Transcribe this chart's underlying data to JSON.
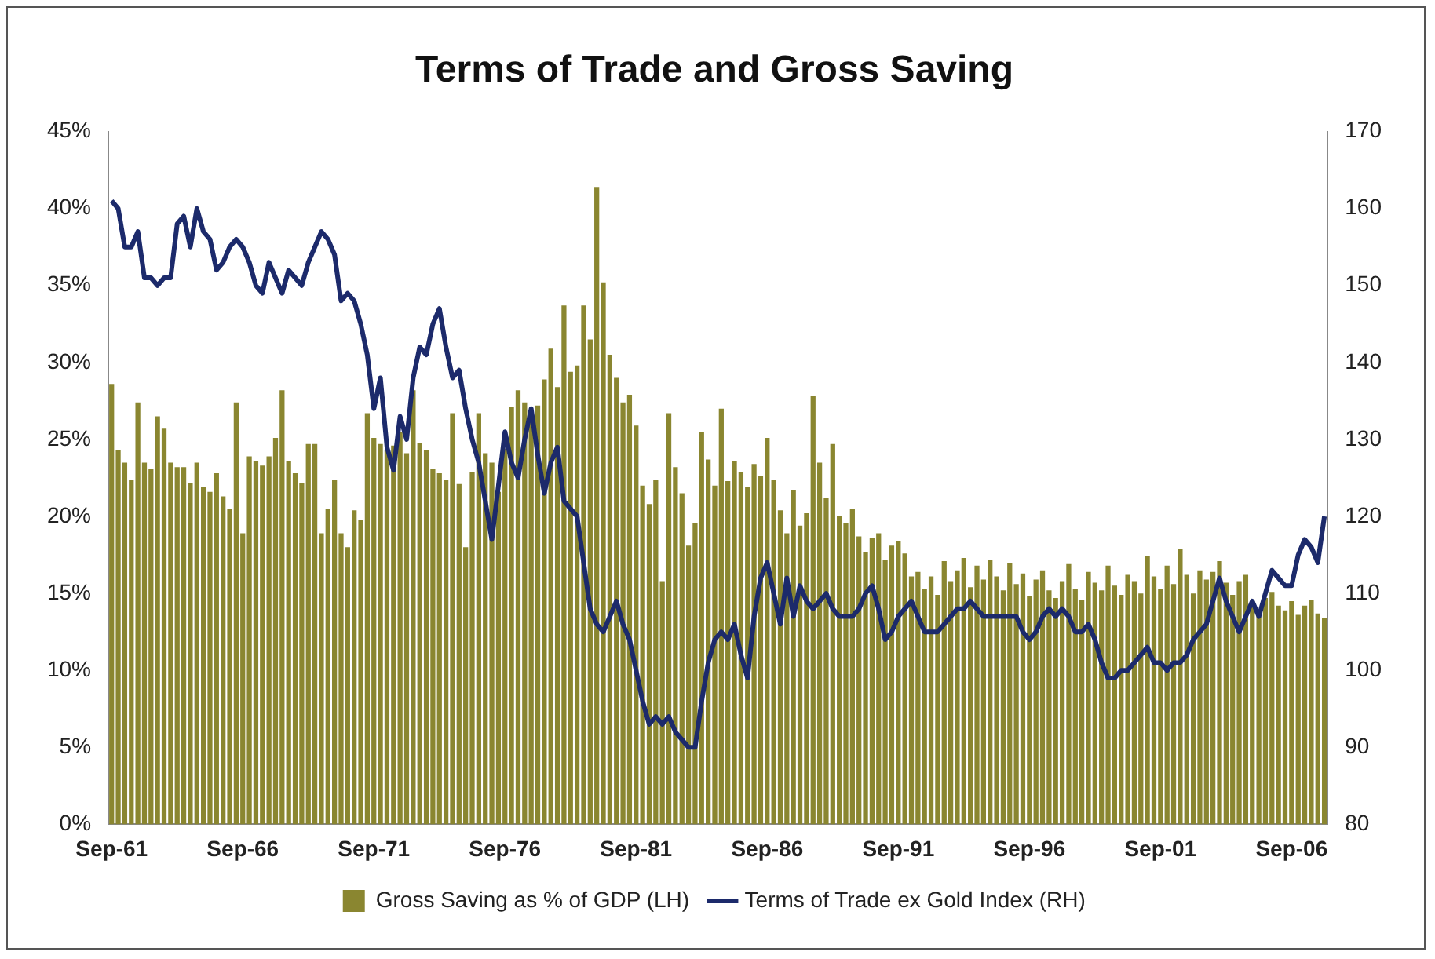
{
  "chart_data": {
    "type": "bar",
    "title": "Terms of Trade and Gross Saving",
    "categories": [
      "Sep-61",
      null,
      null,
      null,
      null,
      null,
      null,
      null,
      null,
      null,
      null,
      null,
      null,
      null,
      null,
      null,
      null,
      null,
      null,
      null,
      "Sep-66",
      null,
      null,
      null,
      null,
      null,
      null,
      null,
      null,
      null,
      null,
      null,
      null,
      null,
      null,
      null,
      null,
      null,
      null,
      null,
      "Sep-71",
      null,
      null,
      null,
      null,
      null,
      null,
      null,
      null,
      null,
      null,
      null,
      null,
      null,
      null,
      null,
      null,
      null,
      null,
      null,
      "Sep-76",
      null,
      null,
      null,
      null,
      null,
      null,
      null,
      null,
      null,
      null,
      null,
      null,
      null,
      null,
      null,
      null,
      null,
      null,
      null,
      "Sep-81",
      null,
      null,
      null,
      null,
      null,
      null,
      null,
      null,
      null,
      null,
      null,
      null,
      null,
      null,
      null,
      null,
      null,
      null,
      null,
      "Sep-86",
      null,
      null,
      null,
      null,
      null,
      null,
      null,
      null,
      null,
      null,
      null,
      null,
      null,
      null,
      null,
      null,
      null,
      null,
      null,
      "Sep-91",
      null,
      null,
      null,
      null,
      null,
      null,
      null,
      null,
      null,
      null,
      null,
      null,
      null,
      null,
      null,
      null,
      null,
      null,
      null,
      "Sep-96",
      null,
      null,
      null,
      null,
      null,
      null,
      null,
      null,
      null,
      null,
      null,
      null,
      null,
      null,
      null,
      null,
      null,
      null,
      null,
      "Sep-01",
      null,
      null,
      null,
      null,
      null,
      null,
      null,
      null,
      null,
      null,
      null,
      null,
      null,
      null,
      null,
      null,
      null,
      null,
      null,
      "Sep-06",
      null,
      null,
      null,
      null,
      null
    ],
    "series": [
      {
        "name": "Gross Saving as % of GDP (LH)",
        "color": "#8a8630",
        "values": [
          28.6,
          24.3,
          23.5,
          22.4,
          27.4,
          23.5,
          23.1,
          26.5,
          25.7,
          23.5,
          23.2,
          23.2,
          22.2,
          23.5,
          21.9,
          21.6,
          22.8,
          21.3,
          20.5,
          27.4,
          18.9,
          23.9,
          23.6,
          23.3,
          23.9,
          25.1,
          28.2,
          23.6,
          22.8,
          22.2,
          24.7,
          24.7,
          18.9,
          20.5,
          22.4,
          18.9,
          18,
          20.4,
          19.8,
          26.7,
          25.1,
          24.7,
          24.3,
          24.6,
          25.5,
          24.1,
          28.2,
          24.8,
          24.3,
          23.1,
          22.8,
          22.4,
          26.7,
          22.1,
          18,
          22.9,
          26.7,
          24.1,
          23.5,
          21.6,
          24.4,
          27.1,
          28.2,
          27.4,
          26.3,
          27.2,
          28.9,
          30.9,
          28.4,
          33.7,
          29.4,
          29.8,
          33.7,
          31.5,
          41.4,
          35.2,
          30.5,
          29,
          27.4,
          27.9,
          25.9,
          22,
          20.8,
          22.4,
          15.8,
          26.7,
          23.2,
          21.5,
          18.1,
          19.6,
          25.5,
          23.7,
          22,
          27,
          22.3,
          23.6,
          22.9,
          21.9,
          23.4,
          22.6,
          25.1,
          22.4,
          20.4,
          18.9,
          21.7,
          19.4,
          20.2,
          27.8,
          23.5,
          21.2,
          24.7,
          20,
          19.6,
          20.5,
          18.7,
          17.7,
          18.6,
          18.9,
          17.2,
          18.1,
          18.4,
          17.6,
          16.1,
          16.4,
          15.3,
          16.1,
          14.9,
          17.1,
          15.8,
          16.5,
          17.3,
          15.4,
          16.8,
          15.9,
          17.2,
          16.1,
          15.2,
          17,
          15.6,
          16.3,
          14.8,
          15.9,
          16.5,
          15.2,
          14.7,
          15.8,
          16.9,
          15.3,
          14.6,
          16.4,
          15.7,
          15.2,
          16.8,
          15.5,
          14.9,
          16.2,
          15.8,
          15,
          17.4,
          16.1,
          15.3,
          16.8,
          15.6,
          17.9,
          16.2,
          15,
          16.5,
          15.9,
          16.4,
          17.1,
          15.7,
          14.9,
          15.8,
          16.2,
          14.5,
          13.8,
          14.7,
          15.1,
          14.2,
          13.9,
          14.5,
          13.6,
          14.2,
          14.6,
          13.7,
          13.4
        ]
      },
      {
        "name": "Terms of Trade ex Gold Index (RH)",
        "type": "line",
        "axis": "y2",
        "color": "#1c2a6b",
        "values": [
          161,
          160,
          155,
          155,
          157,
          151,
          151,
          150,
          151,
          151,
          158,
          159,
          155,
          160,
          157,
          156,
          152,
          153,
          155,
          156,
          155,
          153,
          150,
          149,
          153,
          151,
          149,
          152,
          151,
          150,
          153,
          155,
          157,
          156,
          154,
          148,
          149,
          148,
          145,
          141,
          134,
          138,
          129,
          126,
          133,
          130,
          138,
          142,
          141,
          145,
          147,
          142,
          138,
          139,
          134,
          130,
          127,
          122,
          117,
          124,
          131,
          127,
          125,
          130,
          134,
          128,
          123,
          127,
          129,
          122,
          121,
          120,
          114,
          108,
          106,
          105,
          107,
          109,
          106,
          104,
          100,
          96,
          93,
          94,
          93,
          94,
          92,
          91,
          90,
          90,
          96,
          101,
          104,
          105,
          104,
          106,
          102,
          99,
          107,
          112,
          114,
          110,
          106,
          112,
          107,
          111,
          109,
          108,
          109,
          110,
          108,
          107,
          107,
          107,
          108,
          110,
          111,
          108,
          104,
          105,
          107,
          108,
          109,
          107,
          105,
          105,
          105,
          106,
          107,
          108,
          108,
          109,
          108,
          107,
          107,
          107,
          107,
          107,
          107,
          105,
          104,
          105,
          107,
          108,
          107,
          108,
          107,
          105,
          105,
          106,
          104,
          101,
          99,
          99,
          100,
          100,
          101,
          102,
          103,
          101,
          101,
          100,
          101,
          101,
          102,
          104,
          105,
          106,
          109,
          112,
          109,
          107,
          105,
          107,
          109,
          107,
          110,
          113,
          112,
          111,
          111,
          115,
          117,
          116,
          114,
          120
        ]
      }
    ],
    "ylim": [
      0,
      45
    ],
    "yticks": [
      {
        "value": 0,
        "label": "0%"
      },
      {
        "value": 5,
        "label": "5%"
      },
      {
        "value": 10,
        "label": "10%"
      },
      {
        "value": 15,
        "label": "15%"
      },
      {
        "value": 20,
        "label": "20%"
      },
      {
        "value": 25,
        "label": "25%"
      },
      {
        "value": 30,
        "label": "30%"
      },
      {
        "value": 35,
        "label": "35%"
      },
      {
        "value": 40,
        "label": "40%"
      },
      {
        "value": 45,
        "label": "45%"
      }
    ],
    "y2lim": [
      80,
      170
    ],
    "y2ticks": [
      80,
      90,
      100,
      110,
      120,
      130,
      140,
      150,
      160,
      170
    ],
    "legend": "bottom",
    "grid": false
  }
}
